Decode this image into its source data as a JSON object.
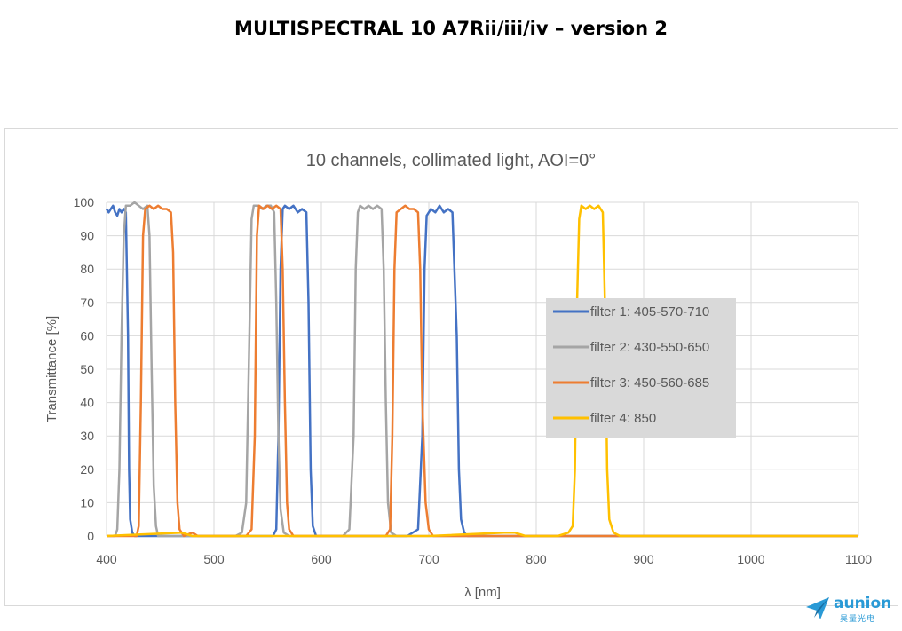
{
  "page": {
    "title": "MULTISPECTRAL 10 A7Rii/iii/iv – version 2",
    "logo_text": "aunion",
    "logo_subtext": "昊量光电"
  },
  "chart_data": {
    "type": "line",
    "title": "10 channels, collimated light, AOI=0°",
    "xlabel": "λ [nm]",
    "ylabel": "Transmittance [%]",
    "xlim": [
      400,
      1100
    ],
    "ylim": [
      0,
      100
    ],
    "xticks": [
      400,
      500,
      600,
      700,
      800,
      900,
      1000,
      1100
    ],
    "yticks": [
      0,
      10,
      20,
      30,
      40,
      50,
      60,
      70,
      80,
      90,
      100
    ],
    "grid": true,
    "legend_position": "center-right",
    "series": [
      {
        "name": "filter 1: 405-570-710",
        "color": "#4472c4",
        "points": [
          [
            400,
            98
          ],
          [
            402,
            97
          ],
          [
            404,
            98
          ],
          [
            406,
            99
          ],
          [
            408,
            97
          ],
          [
            410,
            96
          ],
          [
            412,
            98
          ],
          [
            414,
            97
          ],
          [
            416,
            98
          ],
          [
            418,
            97
          ],
          [
            420,
            60
          ],
          [
            421,
            20
          ],
          [
            422,
            5
          ],
          [
            424,
            1
          ],
          [
            426,
            0
          ],
          [
            430,
            0
          ],
          [
            540,
            0
          ],
          [
            550,
            0
          ],
          [
            555,
            0
          ],
          [
            558,
            2
          ],
          [
            560,
            30
          ],
          [
            562,
            80
          ],
          [
            564,
            98
          ],
          [
            566,
            99
          ],
          [
            570,
            98
          ],
          [
            574,
            99
          ],
          [
            578,
            97
          ],
          [
            582,
            98
          ],
          [
            586,
            97
          ],
          [
            588,
            70
          ],
          [
            590,
            20
          ],
          [
            592,
            3
          ],
          [
            595,
            0
          ],
          [
            600,
            0
          ],
          [
            660,
            0
          ],
          [
            680,
            0
          ],
          [
            690,
            2
          ],
          [
            694,
            30
          ],
          [
            696,
            80
          ],
          [
            698,
            96
          ],
          [
            702,
            98
          ],
          [
            706,
            97
          ],
          [
            710,
            99
          ],
          [
            714,
            97
          ],
          [
            718,
            98
          ],
          [
            722,
            97
          ],
          [
            726,
            60
          ],
          [
            728,
            20
          ],
          [
            730,
            5
          ],
          [
            733,
            1
          ],
          [
            736,
            0
          ],
          [
            800,
            0
          ],
          [
            900,
            0
          ],
          [
            1000,
            0
          ],
          [
            1100,
            0
          ]
        ]
      },
      {
        "name": "filter 2: 430-550-650",
        "color": "#a5a5a5",
        "points": [
          [
            400,
            0
          ],
          [
            408,
            0
          ],
          [
            410,
            2
          ],
          [
            412,
            20
          ],
          [
            414,
            60
          ],
          [
            416,
            90
          ],
          [
            418,
            99
          ],
          [
            422,
            99
          ],
          [
            426,
            100
          ],
          [
            430,
            99
          ],
          [
            434,
            98
          ],
          [
            438,
            99
          ],
          [
            440,
            90
          ],
          [
            442,
            50
          ],
          [
            444,
            15
          ],
          [
            446,
            3
          ],
          [
            448,
            0
          ],
          [
            455,
            0
          ],
          [
            520,
            0
          ],
          [
            526,
            1
          ],
          [
            530,
            10
          ],
          [
            533,
            60
          ],
          [
            535,
            95
          ],
          [
            537,
            99
          ],
          [
            541,
            99
          ],
          [
            545,
            98
          ],
          [
            549,
            99
          ],
          [
            553,
            99
          ],
          [
            556,
            97
          ],
          [
            558,
            70
          ],
          [
            560,
            30
          ],
          [
            562,
            8
          ],
          [
            565,
            1
          ],
          [
            570,
            0
          ],
          [
            620,
            0
          ],
          [
            626,
            2
          ],
          [
            630,
            30
          ],
          [
            632,
            80
          ],
          [
            634,
            97
          ],
          [
            636,
            99
          ],
          [
            640,
            98
          ],
          [
            644,
            99
          ],
          [
            648,
            98
          ],
          [
            652,
            99
          ],
          [
            656,
            98
          ],
          [
            658,
            80
          ],
          [
            660,
            40
          ],
          [
            662,
            10
          ],
          [
            665,
            1
          ],
          [
            670,
            0
          ],
          [
            700,
            0
          ],
          [
            800,
            0
          ],
          [
            900,
            0
          ],
          [
            1000,
            0
          ],
          [
            1100,
            0
          ]
        ]
      },
      {
        "name": "filter 3: 450-560-685",
        "color": "#ed7d31",
        "points": [
          [
            400,
            0
          ],
          [
            428,
            0
          ],
          [
            430,
            3
          ],
          [
            432,
            40
          ],
          [
            434,
            90
          ],
          [
            436,
            98
          ],
          [
            440,
            99
          ],
          [
            444,
            98
          ],
          [
            448,
            99
          ],
          [
            452,
            98
          ],
          [
            456,
            98
          ],
          [
            460,
            97
          ],
          [
            462,
            85
          ],
          [
            464,
            40
          ],
          [
            466,
            10
          ],
          [
            468,
            2
          ],
          [
            472,
            0
          ],
          [
            480,
            1
          ],
          [
            485,
            0
          ],
          [
            530,
            0
          ],
          [
            535,
            2
          ],
          [
            538,
            30
          ],
          [
            540,
            90
          ],
          [
            542,
            99
          ],
          [
            546,
            98
          ],
          [
            550,
            99
          ],
          [
            554,
            98
          ],
          [
            558,
            99
          ],
          [
            562,
            98
          ],
          [
            564,
            80
          ],
          [
            566,
            40
          ],
          [
            568,
            10
          ],
          [
            570,
            2
          ],
          [
            574,
            0
          ],
          [
            660,
            0
          ],
          [
            664,
            2
          ],
          [
            666,
            30
          ],
          [
            668,
            80
          ],
          [
            670,
            97
          ],
          [
            674,
            98
          ],
          [
            678,
            99
          ],
          [
            682,
            98
          ],
          [
            686,
            98
          ],
          [
            690,
            97
          ],
          [
            692,
            80
          ],
          [
            694,
            40
          ],
          [
            697,
            10
          ],
          [
            700,
            2
          ],
          [
            704,
            0
          ],
          [
            800,
            0
          ],
          [
            900,
            0
          ],
          [
            1000,
            0
          ],
          [
            1100,
            0
          ]
        ]
      },
      {
        "name": "filter 4: 850",
        "color": "#ffc000",
        "points": [
          [
            400,
            0
          ],
          [
            470,
            1
          ],
          [
            480,
            0
          ],
          [
            600,
            0
          ],
          [
            700,
            0
          ],
          [
            770,
            1
          ],
          [
            780,
            1
          ],
          [
            790,
            0
          ],
          [
            820,
            0
          ],
          [
            830,
            1
          ],
          [
            834,
            3
          ],
          [
            836,
            20
          ],
          [
            838,
            70
          ],
          [
            840,
            95
          ],
          [
            842,
            99
          ],
          [
            846,
            98
          ],
          [
            850,
            99
          ],
          [
            854,
            98
          ],
          [
            858,
            99
          ],
          [
            862,
            97
          ],
          [
            864,
            70
          ],
          [
            866,
            20
          ],
          [
            868,
            5
          ],
          [
            872,
            1
          ],
          [
            878,
            0
          ],
          [
            900,
            0
          ],
          [
            1000,
            0
          ],
          [
            1100,
            0
          ]
        ]
      }
    ]
  }
}
